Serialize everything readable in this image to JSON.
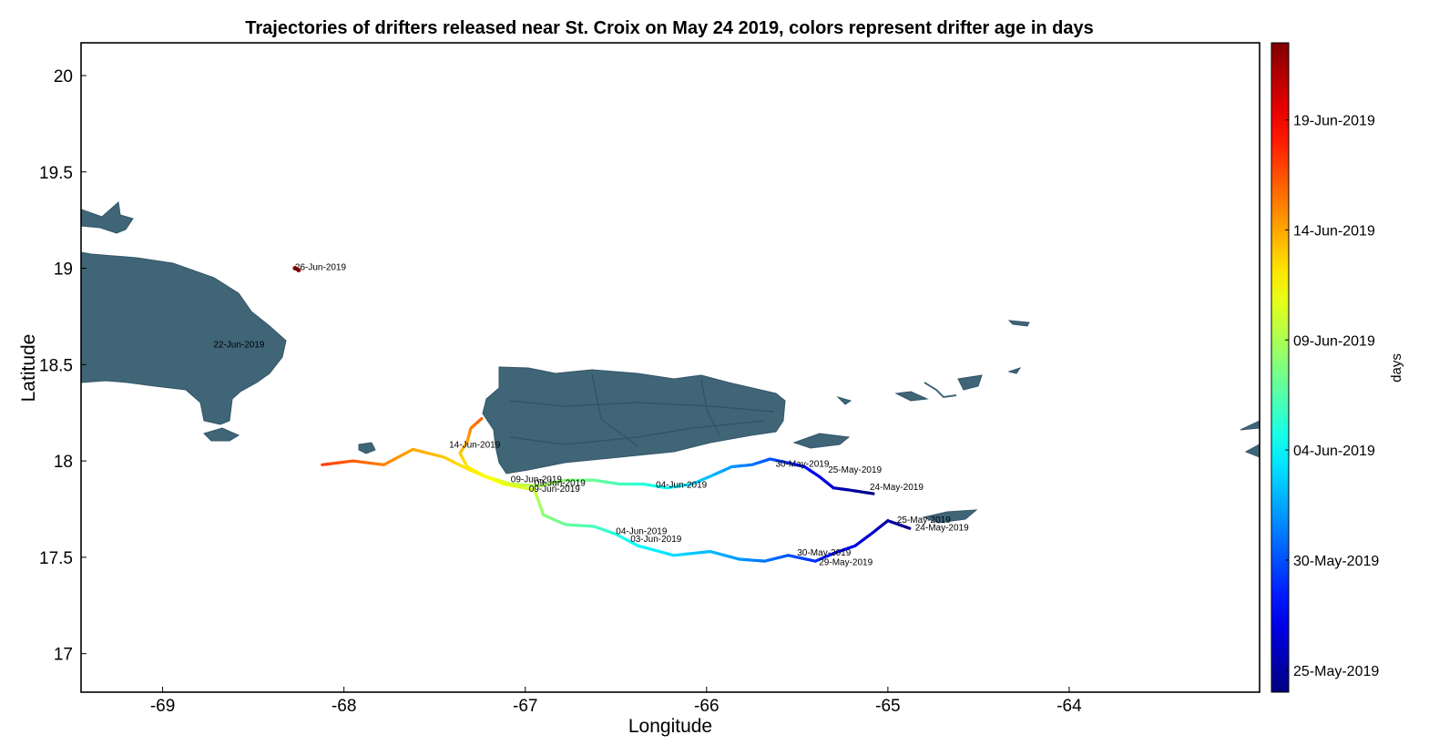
{
  "chart_data": {
    "type": "map-trajectories",
    "title": "Trajectories of drifters released near St. Croix on May 24 2019, colors represent drifter age in days",
    "xlabel": "Longitude",
    "ylabel": "Latitude",
    "xlim": [
      -69.45,
      -62.95
    ],
    "ylim": [
      16.8,
      20.17
    ],
    "xticks": [
      -69,
      -68,
      -67,
      -66,
      -65,
      -64
    ],
    "yticks": [
      17,
      17.5,
      18,
      18.5,
      19,
      19.5,
      20
    ],
    "xtick_labels": [
      "-69",
      "-68",
      "-67",
      "-66",
      "-65",
      "-64"
    ],
    "ytick_labels": [
      "17",
      "17.5",
      "18",
      "18.5",
      "19",
      "19.5",
      "20"
    ],
    "colorbar": {
      "label": "days",
      "colormap": "jet",
      "range_days": [
        0,
        29.5
      ],
      "ticks": [
        {
          "day": 1,
          "label": "25-May-2019"
        },
        {
          "day": 6,
          "label": "30-May-2019"
        },
        {
          "day": 11,
          "label": "04-Jun-2019"
        },
        {
          "day": 16,
          "label": "09-Jun-2019"
        },
        {
          "day": 21,
          "label": "14-Jun-2019"
        },
        {
          "day": 26,
          "label": "19-Jun-2019"
        }
      ]
    },
    "tracks": [
      {
        "points": [
          [
            -65.08,
            17.83,
            0
          ],
          [
            -65.22,
            17.85,
            1
          ],
          [
            -65.3,
            17.86,
            2
          ],
          [
            -65.38,
            17.92,
            3
          ],
          [
            -65.46,
            17.97,
            4
          ],
          [
            -65.55,
            17.99,
            5
          ],
          [
            -65.65,
            18.01,
            6
          ],
          [
            -65.75,
            17.98,
            7
          ],
          [
            -65.86,
            17.97,
            8
          ],
          [
            -65.98,
            17.92,
            9
          ],
          [
            -66.08,
            17.88,
            10
          ],
          [
            -66.22,
            17.86,
            11
          ],
          [
            -66.35,
            17.88,
            12
          ],
          [
            -66.48,
            17.88,
            13
          ],
          [
            -66.62,
            17.9,
            14
          ],
          [
            -66.78,
            17.9,
            15
          ],
          [
            -66.92,
            17.87,
            16
          ],
          [
            -67.08,
            17.88,
            17
          ],
          [
            -67.22,
            17.92,
            18
          ],
          [
            -67.32,
            17.97,
            19
          ],
          [
            -67.36,
            18.04,
            20
          ],
          [
            -67.32,
            18.1,
            21
          ],
          [
            -67.3,
            18.17,
            22
          ],
          [
            -67.24,
            18.22,
            23
          ]
        ]
      },
      {
        "points": [
          [
            -64.88,
            17.65,
            0
          ],
          [
            -65.0,
            17.69,
            1
          ],
          [
            -65.08,
            17.63,
            2
          ],
          [
            -65.18,
            17.56,
            3
          ],
          [
            -65.3,
            17.52,
            4
          ],
          [
            -65.4,
            17.48,
            5
          ],
          [
            -65.55,
            17.51,
            6
          ],
          [
            -65.68,
            17.48,
            7
          ],
          [
            -65.82,
            17.49,
            8
          ],
          [
            -65.98,
            17.53,
            9
          ],
          [
            -66.18,
            17.51,
            10
          ],
          [
            -66.38,
            17.56,
            11
          ],
          [
            -66.5,
            17.62,
            12
          ],
          [
            -66.62,
            17.66,
            13
          ],
          [
            -66.78,
            17.67,
            14
          ],
          [
            -66.9,
            17.72,
            15
          ],
          [
            -66.93,
            17.8,
            16
          ],
          [
            -66.95,
            17.85,
            17
          ],
          [
            -67.12,
            17.88,
            18
          ],
          [
            -67.3,
            17.95,
            19
          ],
          [
            -67.45,
            18.02,
            20
          ],
          [
            -67.62,
            18.06,
            21
          ],
          [
            -67.78,
            17.98,
            22
          ],
          [
            -67.95,
            18.0,
            23
          ],
          [
            -68.12,
            17.98,
            24
          ]
        ]
      },
      {
        "points": [
          [
            -68.25,
            18.99,
            28.5
          ],
          [
            -68.27,
            19.0,
            29.0
          ]
        ]
      }
    ],
    "annotations": [
      {
        "text": "24-May-2019",
        "lon": -65.1,
        "lat": 17.85
      },
      {
        "text": "25-May-2019",
        "lon": -65.33,
        "lat": 17.94
      },
      {
        "text": "30-May-2019",
        "lon": -65.62,
        "lat": 17.97
      },
      {
        "text": "04-Jun-2019",
        "lon": -66.28,
        "lat": 17.86
      },
      {
        "text": "09-Jun-2019",
        "lon": -67.08,
        "lat": 17.89
      },
      {
        "text": "09-Jun-2019",
        "lon": -66.95,
        "lat": 17.87
      },
      {
        "text": "09-Jun-2019",
        "lon": -66.98,
        "lat": 17.84
      },
      {
        "text": "14-Jun-2019",
        "lon": -67.42,
        "lat": 18.07
      },
      {
        "text": "24-May-2019",
        "lon": -64.85,
        "lat": 17.64
      },
      {
        "text": "25-May-2019",
        "lon": -64.95,
        "lat": 17.68
      },
      {
        "text": "30-May-2019",
        "lon": -65.5,
        "lat": 17.51
      },
      {
        "text": "29-May-2019",
        "lon": -65.38,
        "lat": 17.46
      },
      {
        "text": "04-Jun-2019",
        "lon": -66.5,
        "lat": 17.62
      },
      {
        "text": "03-Jun-2019",
        "lon": -66.42,
        "lat": 17.58
      },
      {
        "text": "22-Jun-2019",
        "lon": -68.72,
        "lat": 18.59
      },
      {
        "text": "26-Jun-2019",
        "lon": -68.27,
        "lat": 18.99
      }
    ]
  }
}
